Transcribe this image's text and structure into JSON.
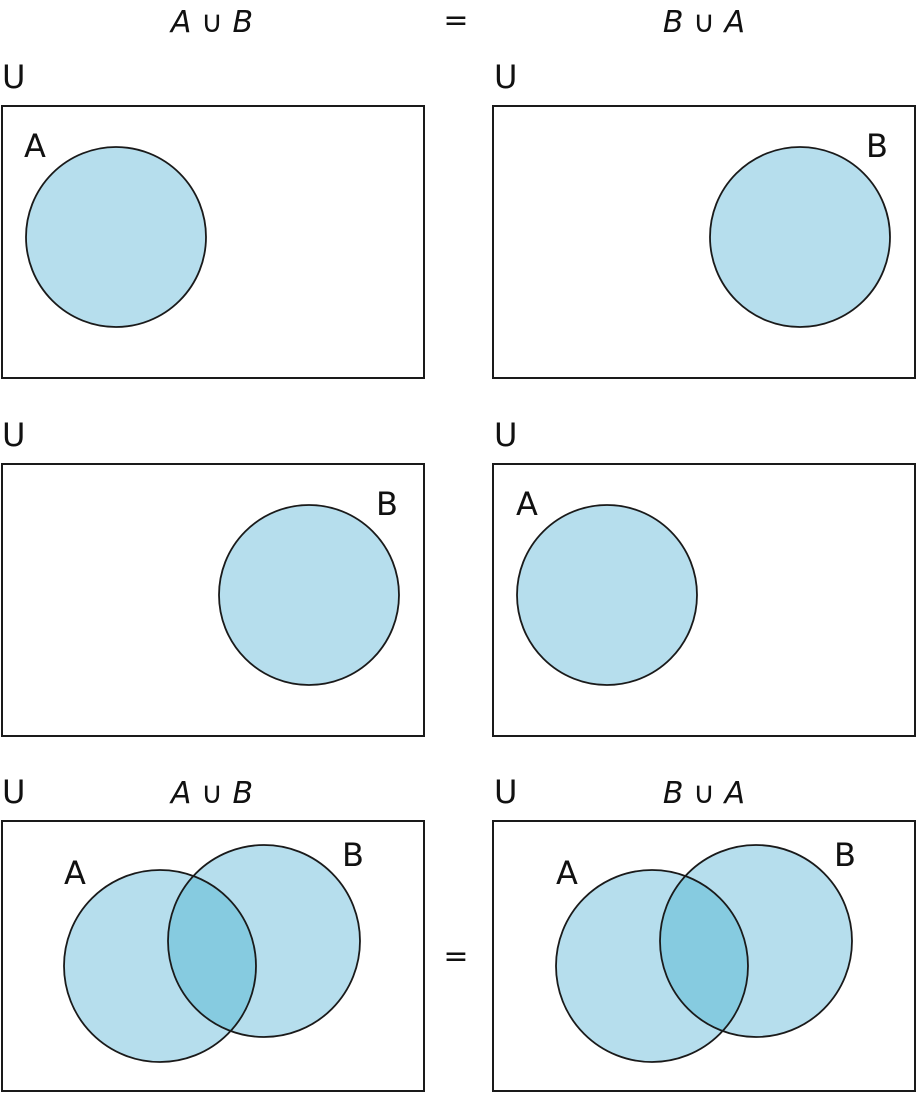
{
  "header": {
    "left_formula": "A ∪ B",
    "equals": "=",
    "right_formula": "B ∪ A"
  },
  "universe_label": "U",
  "set_a_label": "A",
  "set_b_label": "B",
  "bottom_row": {
    "left_formula": "A ∪ B",
    "right_formula": "B ∪ A",
    "equals": "="
  },
  "colors": {
    "set_fill": "#b6deed",
    "overlap_fill": "#86cbe0",
    "outline": "#1a1a1a",
    "background": "#ffffff"
  }
}
